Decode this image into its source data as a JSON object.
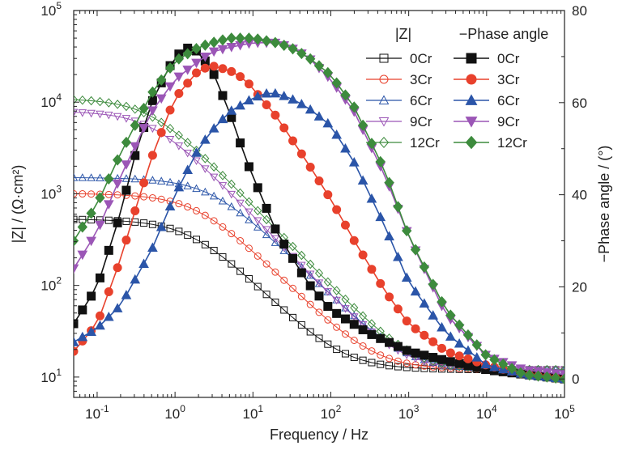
{
  "chart_data": {
    "type": "line",
    "xlabel": "Frequency / Hz",
    "ylabel_left": "|Z| / (Ω·cm²)",
    "ylabel_right": "−Phase angle / (°)",
    "x_scale": "log",
    "xlim": [
      0.05,
      100000
    ],
    "x_ticks": [
      {
        "base": "10",
        "exp": "-1"
      },
      {
        "base": "10",
        "exp": "0"
      },
      {
        "base": "10",
        "exp": "1"
      },
      {
        "base": "10",
        "exp": "2"
      },
      {
        "base": "10",
        "exp": "3"
      },
      {
        "base": "10",
        "exp": "4"
      },
      {
        "base": "10",
        "exp": "5"
      }
    ],
    "y_left_scale": "log",
    "y_left_lim": [
      6,
      100000
    ],
    "y_left_ticks": [
      {
        "base": "10",
        "exp": "1"
      },
      {
        "base": "10",
        "exp": "2"
      },
      {
        "base": "10",
        "exp": "3"
      },
      {
        "base": "10",
        "exp": "4"
      },
      {
        "base": "10",
        "exp": "5"
      }
    ],
    "y_right_lim": [
      -4,
      80
    ],
    "y_right_ticks": [
      "0",
      "20",
      "40",
      "60",
      "80"
    ],
    "legend": {
      "position": "top-right",
      "header_left": "|Z|",
      "header_right": "−Phase angle"
    },
    "series": [
      {
        "name": "0Cr",
        "color": "#111111",
        "impedance": {
          "rs": 12,
          "r": 520,
          "q": 0.00027,
          "n": 0.85
        },
        "phase": {
          "x": [
            0.05,
            0.1,
            0.2,
            0.3,
            0.5,
            0.8,
            1,
            1.5,
            2,
            3,
            5,
            8,
            10,
            20,
            50,
            100,
            300,
            1000,
            3000,
            10000,
            30000,
            100000
          ],
          "y": [
            12,
            20,
            36,
            48,
            60,
            67,
            70,
            72,
            71,
            67,
            58,
            48,
            44,
            32,
            21,
            15,
            10,
            6,
            4,
            2,
            1,
            0
          ]
        }
      },
      {
        "name": "3Cr",
        "color": "#e8412c",
        "impedance": {
          "rs": 12,
          "r": 1000,
          "q": 0.00012,
          "n": 0.85
        },
        "phase": {
          "x": [
            0.05,
            0.1,
            0.2,
            0.3,
            0.5,
            0.8,
            1,
            2,
            3,
            5,
            8,
            10,
            20,
            50,
            100,
            200,
            500,
            1000,
            3000,
            10000,
            30000,
            100000
          ],
          "y": [
            6,
            12,
            26,
            36,
            48,
            57,
            61,
            67,
            68,
            67,
            65,
            63,
            57,
            47,
            39,
            30,
            19,
            12,
            6,
            3,
            1,
            0
          ]
        }
      },
      {
        "name": "6Cr",
        "color": "#2b55a8",
        "impedance": {
          "rs": 12,
          "r": 1500,
          "q": 5.5e-05,
          "n": 0.85
        },
        "phase": {
          "x": [
            0.05,
            0.1,
            0.2,
            0.5,
            1,
            2,
            3,
            5,
            10,
            15,
            20,
            30,
            50,
            100,
            200,
            500,
            1000,
            3000,
            10000,
            30000,
            100000
          ],
          "y": [
            8,
            11,
            16,
            28,
            40,
            50,
            54,
            58,
            61,
            62,
            62,
            61,
            59,
            55,
            47,
            33,
            21,
            10,
            3,
            1,
            0
          ]
        }
      },
      {
        "name": "9Cr",
        "color": "#9b56b6",
        "impedance": {
          "rs": 12,
          "r": 8000,
          "q": 4.5e-05,
          "n": 0.88
        },
        "phase": {
          "x": [
            0.05,
            0.1,
            0.2,
            0.5,
            1,
            2,
            3,
            5,
            10,
            15,
            20,
            30,
            50,
            100,
            200,
            500,
            1000,
            3000,
            10000,
            30000,
            100000
          ],
          "y": [
            24,
            32,
            44,
            58,
            65,
            69,
            71,
            72,
            73,
            73,
            73,
            72,
            70,
            65,
            58,
            44,
            31,
            14,
            5,
            2,
            1
          ]
        }
      },
      {
        "name": "12Cr",
        "color": "#3d8b3d",
        "impedance": {
          "rs": 12,
          "r": 11000,
          "q": 3.5e-05,
          "n": 0.88
        },
        "phase": {
          "x": [
            0.05,
            0.1,
            0.2,
            0.5,
            1,
            2,
            3,
            5,
            8,
            10,
            20,
            30,
            50,
            100,
            200,
            500,
            1000,
            3000,
            10000,
            30000,
            100000
          ],
          "y": [
            30,
            38,
            49,
            62,
            69,
            72,
            73,
            74,
            74,
            74,
            73,
            72,
            70,
            66,
            59,
            45,
            31,
            15,
            5,
            1,
            0
          ]
        }
      }
    ]
  }
}
